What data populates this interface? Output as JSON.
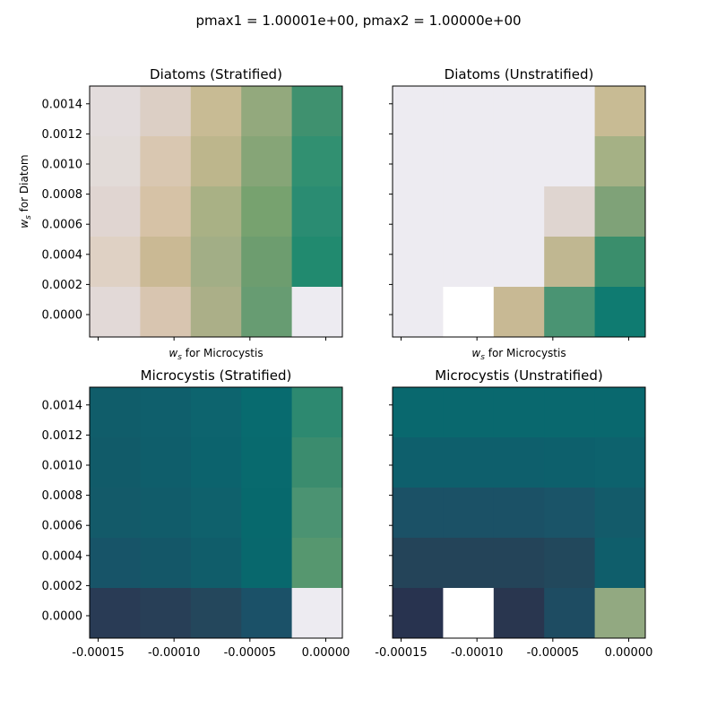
{
  "suptitle": "pmax1 = 1.00001e+00, pmax2 = 1.00000e+00",
  "chart_data": {
    "type": "heatmap",
    "x_ticks": [
      "-0.00015",
      "-0.00010",
      "-0.00005",
      "0.00000"
    ],
    "y_ticks": [
      "0.0000",
      "0.0002",
      "0.0004",
      "0.0006",
      "0.0008",
      "0.0010",
      "0.0012",
      "0.0014"
    ],
    "xlabel": "w_s for Microcystis",
    "ylabel": "w_s for Diatom",
    "panels": [
      {
        "title": "Diatoms (Stratified)",
        "show_xlabel": true,
        "show_ylabel": true,
        "show_ytick_labels": true,
        "show_xtick_labels": false,
        "cells": [
          [
            "#e3dcdc",
            "#dccfc5",
            "#c8bb94",
            "#93a97d",
            "#3f916f"
          ],
          [
            "#e2dbd8",
            "#d9c7b1",
            "#bdb68c",
            "#86a577",
            "#319071"
          ],
          [
            "#e0d5d1",
            "#d6c2a6",
            "#a9b185",
            "#77a26f",
            "#2a8c72"
          ],
          [
            "#dfd1c4",
            "#cab994",
            "#a2ae86",
            "#6d9d6f",
            "#218a6f"
          ],
          [
            "#e2d9d7",
            "#d8c5b0",
            "#abaf88",
            "#679c72",
            "#edebf1"
          ]
        ]
      },
      {
        "title": "Diatoms (Unstratified)",
        "show_xlabel": true,
        "show_ylabel": false,
        "show_ytick_labels": false,
        "show_xtick_labels": false,
        "cells": [
          [
            "#edebf1",
            "#edebf1",
            "#edebf1",
            "#edebf1",
            "#c8bb94"
          ],
          [
            "#edebf1",
            "#edebf1",
            "#edebf1",
            "#edebf1",
            "#a5b185"
          ],
          [
            "#edebf1",
            "#edebf1",
            "#edebf1",
            "#dfd5d0",
            "#7fa278"
          ],
          [
            "#edebf1",
            "#edebf1",
            "#edebf1",
            "#c0b791",
            "#3a8e6c"
          ],
          [
            "#edebf1",
            "#ffffff",
            "#c8b994",
            "#4a9473",
            "#0f7b71"
          ]
        ]
      },
      {
        "title": "Microcystis (Stratified)",
        "show_xlabel": false,
        "show_ylabel": false,
        "show_ytick_labels": true,
        "show_xtick_labels": true,
        "cells": [
          [
            "#105d6a",
            "#0f5f6c",
            "#0d646e",
            "#086b6f",
            "#2d8970"
          ],
          [
            "#115b69",
            "#0f5e6b",
            "#0c636d",
            "#086a6e",
            "#3b8c6e"
          ],
          [
            "#135a69",
            "#115c6a",
            "#0f616c",
            "#07696d",
            "#4b9372"
          ],
          [
            "#175468",
            "#145768",
            "#105d6a",
            "#08686d",
            "#56976f"
          ],
          [
            "#293b55",
            "#283f57",
            "#24475c",
            "#1b5168",
            "#edebf1"
          ]
        ]
      },
      {
        "title": "Microcystis (Unstratified)",
        "show_xlabel": false,
        "show_ylabel": false,
        "show_ytick_labels": false,
        "show_xtick_labels": true,
        "cells": [
          [
            "#09686e",
            "#09686e",
            "#09686e",
            "#09686e",
            "#09686e"
          ],
          [
            "#0e5f6c",
            "#0e5f6c",
            "#0e5f6c",
            "#0d606c",
            "#0d626d"
          ],
          [
            "#1b5166",
            "#1b5166",
            "#1b5166",
            "#1a5468",
            "#135b6a"
          ],
          [
            "#244459",
            "#244459",
            "#244459",
            "#22485c",
            "#0f5e6b"
          ],
          [
            "#28334f",
            "#ffffff",
            "#29364f",
            "#1e4c62",
            "#92a981"
          ]
        ]
      }
    ]
  }
}
